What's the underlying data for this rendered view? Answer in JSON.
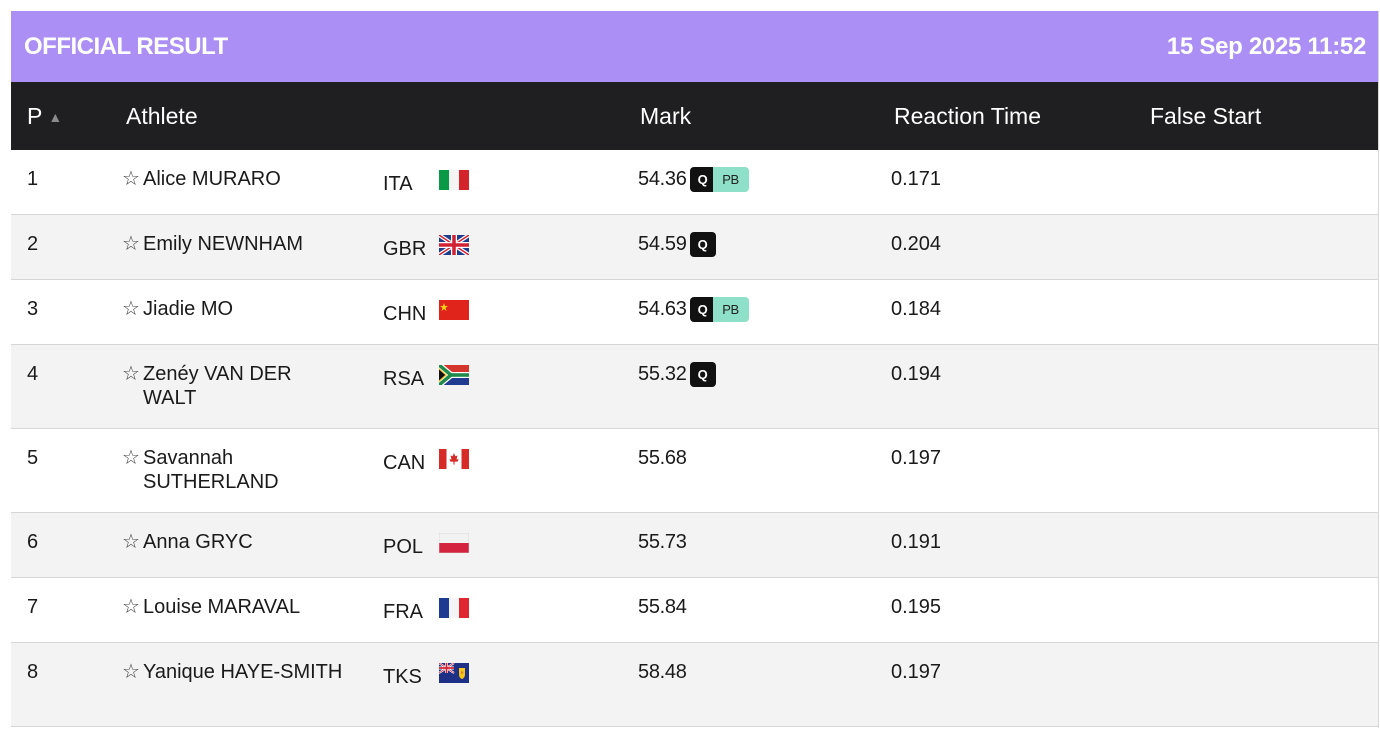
{
  "header": {
    "title": "OFFICIAL RESULT",
    "timestamp": "15 Sep 2025 11:52",
    "background": "#ab8ff5"
  },
  "columns": {
    "position": "P",
    "athlete": "Athlete",
    "mark": "Mark",
    "reaction_time": "Reaction Time",
    "false_start": "False Start"
  },
  "sort_icon": "triangle-up-icon",
  "rows": [
    {
      "pos": "1",
      "name": "Alice MURARO",
      "country": "ITA",
      "flag": "italy-flag-icon",
      "mark": "54.36",
      "q": "Q",
      "pb": "PB",
      "rt": "0.171",
      "fs": ""
    },
    {
      "pos": "2",
      "name": "Emily NEWNHAM",
      "country": "GBR",
      "flag": "uk-flag-icon",
      "mark": "54.59",
      "q": "Q",
      "pb": "",
      "rt": "0.204",
      "fs": ""
    },
    {
      "pos": "3",
      "name": "Jiadie MO",
      "country": "CHN",
      "flag": "china-flag-icon",
      "mark": "54.63",
      "q": "Q",
      "pb": "PB",
      "rt": "0.184",
      "fs": ""
    },
    {
      "pos": "4",
      "name": "Zenéy VAN DER WALT",
      "country": "RSA",
      "flag": "south-africa-flag-icon",
      "mark": "55.32",
      "q": "Q",
      "pb": "",
      "rt": "0.194",
      "fs": ""
    },
    {
      "pos": "5",
      "name": "Savannah SUTHERLAND",
      "country": "CAN",
      "flag": "canada-flag-icon",
      "mark": "55.68",
      "q": "",
      "pb": "",
      "rt": "0.197",
      "fs": ""
    },
    {
      "pos": "6",
      "name": "Anna GRYC",
      "country": "POL",
      "flag": "poland-flag-icon",
      "mark": "55.73",
      "q": "",
      "pb": "",
      "rt": "0.191",
      "fs": ""
    },
    {
      "pos": "7",
      "name": "Louise MARAVAL",
      "country": "FRA",
      "flag": "france-flag-icon",
      "mark": "55.84",
      "q": "",
      "pb": "",
      "rt": "0.195",
      "fs": ""
    },
    {
      "pos": "8",
      "name": "Yanique HAYE-SMITH",
      "country": "TKS",
      "flag": "turks-caicos-flag-icon",
      "mark": "58.48",
      "q": "",
      "pb": "",
      "rt": "0.197",
      "fs": ""
    }
  ],
  "colors": {
    "header_bar": "#ab8ff5",
    "table_head": "#1f1e20",
    "q_badge": "#111111",
    "pb_badge": "#8fe0c8"
  }
}
